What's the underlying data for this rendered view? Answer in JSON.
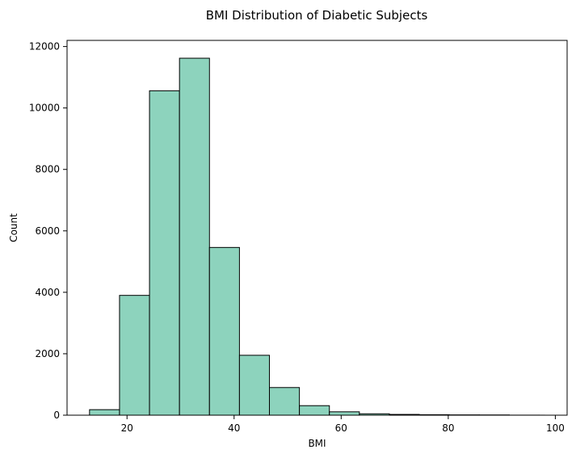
{
  "chart_data": {
    "type": "bar",
    "title": "BMI Distribution of Diabetic Subjects",
    "xlabel": "BMI",
    "ylabel": "Count",
    "xlim": [
      8.8,
      102.2
    ],
    "ylim": [
      0,
      12200
    ],
    "x_ticks": [
      20,
      40,
      60,
      80,
      100
    ],
    "y_ticks": [
      0,
      2000,
      4000,
      6000,
      8000,
      10000,
      12000
    ],
    "bins": [
      {
        "start": 13.0,
        "end": 18.6,
        "count": 180
      },
      {
        "start": 18.6,
        "end": 24.2,
        "count": 3900
      },
      {
        "start": 24.2,
        "end": 29.8,
        "count": 10560
      },
      {
        "start": 29.8,
        "end": 35.4,
        "count": 11620
      },
      {
        "start": 35.4,
        "end": 41.0,
        "count": 5460
      },
      {
        "start": 41.0,
        "end": 46.6,
        "count": 1950
      },
      {
        "start": 46.6,
        "end": 52.2,
        "count": 900
      },
      {
        "start": 52.2,
        "end": 57.8,
        "count": 310
      },
      {
        "start": 57.8,
        "end": 63.4,
        "count": 110
      },
      {
        "start": 63.4,
        "end": 69.0,
        "count": 45
      },
      {
        "start": 69.0,
        "end": 74.6,
        "count": 25
      },
      {
        "start": 74.6,
        "end": 80.2,
        "count": 15
      },
      {
        "start": 80.2,
        "end": 85.8,
        "count": 10
      },
      {
        "start": 85.8,
        "end": 91.4,
        "count": 8
      },
      {
        "start": 91.4,
        "end": 97.0,
        "count": 2
      },
      {
        "start": 97.0,
        "end": 98.0,
        "count": 1
      }
    ],
    "bar_color": "#8dd3bd",
    "edge_color": "#000000",
    "grid": false,
    "legend": "none"
  }
}
